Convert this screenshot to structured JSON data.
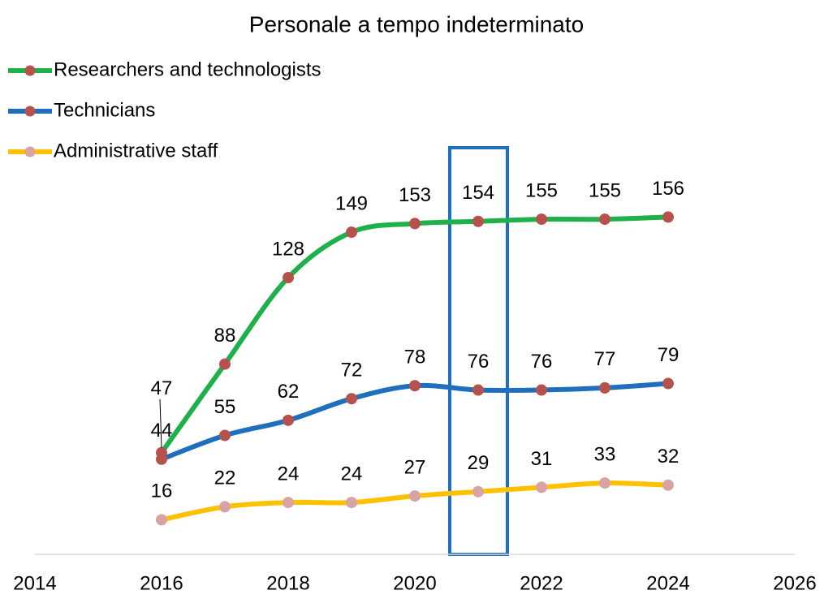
{
  "chart_data": {
    "type": "line",
    "title": "Personale a tempo indeterminato",
    "x": [
      2016,
      2017,
      2018,
      2019,
      2020,
      2021,
      2022,
      2023,
      2024
    ],
    "series": [
      {
        "name": "Researchers and technologists",
        "color": "#1eb04b",
        "marker_color": "#b5524e",
        "values": [
          47,
          88,
          128,
          149,
          153,
          154,
          155,
          155,
          156
        ]
      },
      {
        "name": "Technicians",
        "color": "#1f6fbf",
        "marker_color": "#b5524e",
        "values": [
          44,
          55,
          62,
          72,
          78,
          76,
          76,
          77,
          79
        ]
      },
      {
        "name": "Administrative staff",
        "color": "#ffc000",
        "marker_color": "#d9a3a3",
        "values": [
          16,
          22,
          24,
          24,
          27,
          29,
          31,
          33,
          32
        ]
      }
    ],
    "xlim": [
      2014,
      2026
    ],
    "xticks": [
      2014,
      2016,
      2018,
      2020,
      2022,
      2024,
      2026
    ],
    "ylim": [
      0,
      180
    ],
    "legend": "top-left"
  }
}
